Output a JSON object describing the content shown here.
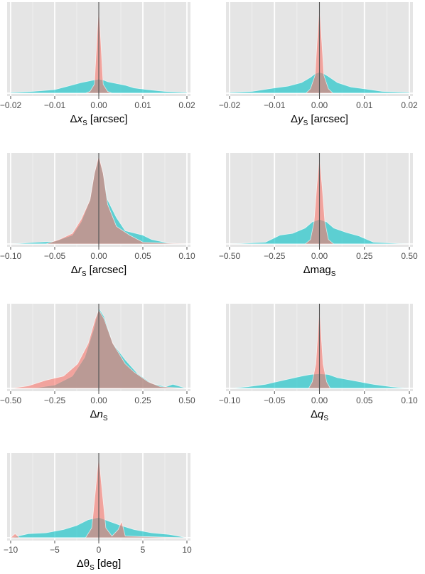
{
  "chart_data": [
    {
      "type": "area",
      "xlabel": "Δx",
      "xlabel_italic": "x",
      "xlabel_sub": "S",
      "xlabel_unit": "[arcsec]",
      "xlim": [
        -0.02,
        0.02
      ],
      "ticks": [
        -0.02,
        -0.01,
        0.0,
        0.01,
        0.02
      ],
      "tick_labels": [
        "−0.02",
        "−0.01",
        "0.00",
        "0.01",
        "0.02"
      ],
      "grid": true,
      "series": [
        {
          "color": "#00bfc4",
          "x": [
            -0.02,
            -0.015,
            -0.01,
            -0.007,
            -0.004,
            -0.002,
            -0.001,
            0.0,
            0.001,
            0.002,
            0.004,
            0.006,
            0.008,
            0.011,
            0.015,
            0.02
          ],
          "y": [
            0.01,
            0.02,
            0.04,
            0.08,
            0.12,
            0.14,
            0.15,
            0.16,
            0.15,
            0.13,
            0.11,
            0.09,
            0.06,
            0.04,
            0.02,
            0.01
          ]
        },
        {
          "color": "#f8766d",
          "x": [
            -0.02,
            -0.003,
            -0.002,
            -0.001,
            -0.0005,
            0.0,
            0.0005,
            0.001,
            0.002,
            0.003,
            0.02
          ],
          "y": [
            0.0,
            0.0,
            0.02,
            0.1,
            0.55,
            1.0,
            0.55,
            0.1,
            0.02,
            0.0,
            0.0
          ]
        }
      ]
    },
    {
      "type": "area",
      "xlabel": "Δy",
      "xlabel_italic": "y",
      "xlabel_sub": "S",
      "xlabel_unit": "[arcsec]",
      "xlim": [
        -0.02,
        0.02
      ],
      "ticks": [
        -0.02,
        -0.01,
        0.0,
        0.01,
        0.02
      ],
      "tick_labels": [
        "−0.02",
        "−0.01",
        "0.00",
        "0.01",
        "0.02"
      ],
      "grid": true,
      "series": [
        {
          "color": "#00bfc4",
          "x": [
            -0.02,
            -0.015,
            -0.01,
            -0.007,
            -0.004,
            -0.002,
            -0.001,
            0.0,
            0.001,
            0.002,
            0.004,
            0.007,
            0.01,
            0.014,
            0.02
          ],
          "y": [
            0.01,
            0.02,
            0.06,
            0.08,
            0.12,
            0.18,
            0.22,
            0.24,
            0.22,
            0.19,
            0.12,
            0.07,
            0.05,
            0.02,
            0.01
          ]
        },
        {
          "color": "#f8766d",
          "x": [
            -0.02,
            -0.003,
            -0.002,
            -0.001,
            -0.0005,
            0.0,
            0.0005,
            0.001,
            0.002,
            0.003,
            0.02
          ],
          "y": [
            0.0,
            0.0,
            0.05,
            0.2,
            0.6,
            1.0,
            0.6,
            0.2,
            0.05,
            0.0,
            0.0
          ]
        }
      ]
    },
    {
      "type": "area",
      "xlabel": "Δr",
      "xlabel_italic": "r",
      "xlabel_sub": "S",
      "xlabel_unit": "[arcsec]",
      "xlim": [
        -0.1,
        0.1
      ],
      "ticks": [
        -0.1,
        -0.05,
        0.0,
        0.05,
        0.1
      ],
      "tick_labels": [
        "−0.10",
        "−0.05",
        "0.00",
        "0.05",
        "0.10"
      ],
      "grid": true,
      "series": [
        {
          "color": "#00bfc4",
          "x": [
            -0.1,
            -0.07,
            -0.05,
            -0.03,
            -0.02,
            -0.01,
            -0.005,
            0.0,
            0.005,
            0.01,
            0.02,
            0.03,
            0.05,
            0.06,
            0.08,
            0.1
          ],
          "y": [
            0.0,
            0.02,
            0.03,
            0.1,
            0.25,
            0.5,
            0.8,
            0.98,
            0.8,
            0.5,
            0.3,
            0.15,
            0.1,
            0.05,
            0.01,
            0.0
          ]
        },
        {
          "color": "#f8766d",
          "x": [
            -0.1,
            -0.06,
            -0.045,
            -0.03,
            -0.02,
            -0.01,
            -0.005,
            0.0,
            0.005,
            0.01,
            0.02,
            0.035,
            0.05,
            0.1
          ],
          "y": [
            0.0,
            0.0,
            0.05,
            0.12,
            0.28,
            0.5,
            0.8,
            1.0,
            0.8,
            0.45,
            0.2,
            0.1,
            0.02,
            0.0
          ]
        }
      ]
    },
    {
      "type": "area",
      "xlabel": "Δmag",
      "xlabel_italic": "",
      "xlabel_sub": "S",
      "xlabel_unit": "",
      "xlim": [
        -0.5,
        0.5
      ],
      "ticks": [
        -0.5,
        -0.25,
        0.0,
        0.25,
        0.5
      ],
      "tick_labels": [
        "−0.50",
        "−0.25",
        "0.00",
        "0.25",
        "0.50"
      ],
      "grid": true,
      "series": [
        {
          "color": "#00bfc4",
          "x": [
            -0.5,
            -0.3,
            -0.22,
            -0.15,
            -0.08,
            -0.04,
            0.0,
            0.04,
            0.08,
            0.15,
            0.22,
            0.3,
            0.5
          ],
          "y": [
            0.0,
            0.02,
            0.1,
            0.12,
            0.18,
            0.25,
            0.28,
            0.25,
            0.18,
            0.13,
            0.09,
            0.02,
            0.0
          ]
        },
        {
          "color": "#f8766d",
          "x": [
            -0.5,
            -0.08,
            -0.05,
            -0.03,
            -0.015,
            0.0,
            0.015,
            0.03,
            0.05,
            0.08,
            0.5
          ],
          "y": [
            0.0,
            0.0,
            0.05,
            0.25,
            0.65,
            1.0,
            0.65,
            0.25,
            0.05,
            0.0,
            0.0
          ]
        }
      ]
    },
    {
      "type": "area",
      "xlabel": "Δn",
      "xlabel_italic": "n",
      "xlabel_sub": "S",
      "xlabel_unit": "",
      "xlim": [
        -0.5,
        0.5
      ],
      "ticks": [
        -0.5,
        -0.25,
        0.0,
        0.25,
        0.5
      ],
      "tick_labels": [
        "−0.50",
        "−0.25",
        "0.00",
        "0.25",
        "0.50"
      ],
      "grid": true,
      "series": [
        {
          "color": "#00bfc4",
          "x": [
            -0.5,
            -0.35,
            -0.25,
            -0.15,
            -0.08,
            -0.03,
            0.0,
            0.03,
            0.08,
            0.15,
            0.22,
            0.3,
            0.38,
            0.42,
            0.5
          ],
          "y": [
            0.0,
            0.01,
            0.04,
            0.15,
            0.38,
            0.72,
            0.98,
            0.88,
            0.55,
            0.35,
            0.18,
            0.06,
            0.02,
            0.05,
            0.0
          ]
        },
        {
          "color": "#f8766d",
          "x": [
            -0.5,
            -0.4,
            -0.3,
            -0.2,
            -0.12,
            -0.06,
            -0.02,
            0.0,
            0.03,
            0.08,
            0.15,
            0.2,
            0.28,
            0.35,
            0.5
          ],
          "y": [
            0.0,
            0.03,
            0.1,
            0.15,
            0.3,
            0.55,
            0.85,
            0.96,
            0.85,
            0.55,
            0.3,
            0.2,
            0.08,
            0.02,
            0.0
          ]
        }
      ]
    },
    {
      "type": "area",
      "xlabel": "Δq",
      "xlabel_italic": "q",
      "xlabel_sub": "S",
      "xlabel_unit": "",
      "xlim": [
        -0.1,
        0.1
      ],
      "ticks": [
        -0.1,
        -0.05,
        0.0,
        0.05,
        0.1
      ],
      "tick_labels": [
        "−0.10",
        "−0.05",
        "0.00",
        "0.05",
        "0.10"
      ],
      "grid": true,
      "series": [
        {
          "color": "#00bfc4",
          "x": [
            -0.1,
            -0.08,
            -0.06,
            -0.04,
            -0.02,
            -0.01,
            0.0,
            0.01,
            0.02,
            0.04,
            0.06,
            0.08,
            0.1
          ],
          "y": [
            0.0,
            0.02,
            0.05,
            0.1,
            0.15,
            0.17,
            0.18,
            0.17,
            0.13,
            0.09,
            0.05,
            0.02,
            0.0
          ]
        },
        {
          "color": "#f8766d",
          "x": [
            -0.1,
            -0.012,
            -0.008,
            -0.004,
            -0.002,
            0.0,
            0.002,
            0.004,
            0.008,
            0.012,
            0.1
          ],
          "y": [
            0.0,
            0.0,
            0.08,
            0.3,
            0.65,
            1.0,
            0.65,
            0.3,
            0.08,
            0.0,
            0.0
          ]
        }
      ]
    },
    {
      "type": "area",
      "xlabel": "Δθ",
      "xlabel_italic": "",
      "xlabel_sub": "S",
      "xlabel_unit": "[deg]",
      "xlim": [
        -10,
        10
      ],
      "ticks": [
        -10,
        -5,
        0,
        5,
        10
      ],
      "tick_labels": [
        "−10",
        "−5",
        "0",
        "5",
        "10"
      ],
      "grid": true,
      "series": [
        {
          "color": "#00bfc4",
          "x": [
            -10,
            -8,
            -6,
            -4,
            -2.5,
            -1.2,
            0,
            1.2,
            2.5,
            4,
            6,
            8,
            10
          ],
          "y": [
            0.0,
            0.05,
            0.06,
            0.1,
            0.15,
            0.22,
            0.25,
            0.2,
            0.15,
            0.1,
            0.06,
            0.04,
            0.0
          ]
        },
        {
          "color": "#f8766d",
          "x": [
            -10,
            -9.5,
            -9,
            -1.5,
            -0.8,
            -0.4,
            0,
            0.4,
            0.8,
            1.5,
            2.2,
            2.6,
            3.0,
            10
          ],
          "y": [
            0.0,
            0.05,
            0.0,
            0.0,
            0.12,
            0.55,
            1.0,
            0.55,
            0.12,
            0.02,
            0.1,
            0.2,
            0.02,
            0.0
          ]
        }
      ]
    }
  ]
}
